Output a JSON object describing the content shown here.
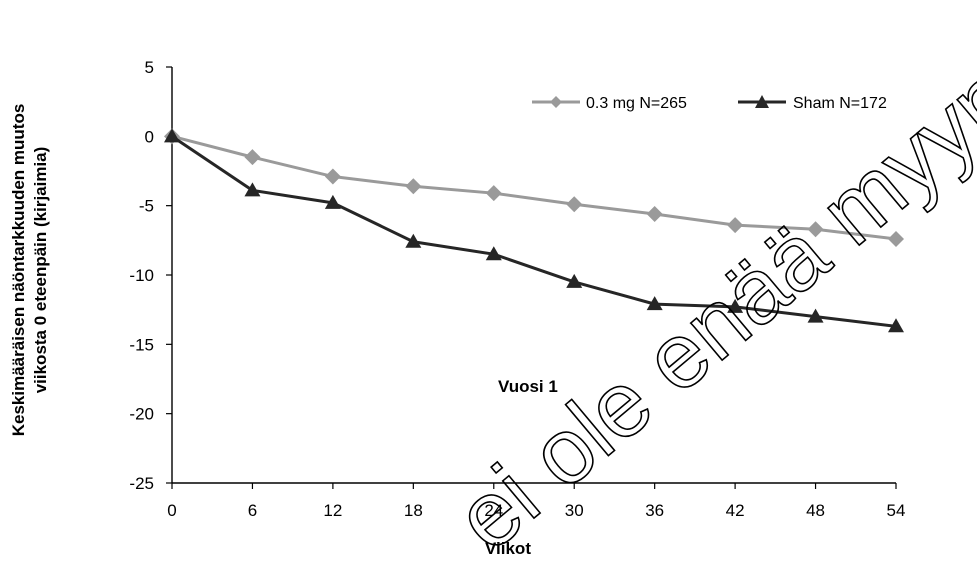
{
  "chart_data": {
    "type": "line",
    "x": [
      0,
      6,
      12,
      18,
      24,
      30,
      36,
      42,
      48,
      54
    ],
    "series": [
      {
        "name": "0.3 mg N=265",
        "color": "#9a9a9a",
        "marker": "diamond",
        "values": [
          0,
          -1.5,
          -2.9,
          -3.6,
          -4.1,
          -4.9,
          -5.6,
          -6.4,
          -6.7,
          -7.4
        ]
      },
      {
        "name": "Sham N=172",
        "color": "#262626",
        "marker": "triangle",
        "values": [
          0,
          -3.9,
          -4.8,
          -7.6,
          -8.5,
          -10.5,
          -12.1,
          -12.3,
          -13.0,
          -13.7
        ]
      }
    ],
    "xlabel": "Viikot",
    "ylabel_lines": [
      "Keskimääräisen näöntarkkuuden muutos",
      "viikosta 0 eteenpäin (kirjaimia)"
    ],
    "xlim": [
      0,
      54
    ],
    "ylim": [
      -25,
      5
    ],
    "x_ticks": [
      0,
      6,
      12,
      18,
      24,
      30,
      36,
      42,
      48,
      54
    ],
    "y_ticks": [
      5,
      0,
      -5,
      -10,
      -15,
      -20,
      -25
    ],
    "grid": false,
    "legend_position": "top-right",
    "annotation": "Vuosi 1",
    "watermark": "ei ole enää myyntilupaa"
  }
}
